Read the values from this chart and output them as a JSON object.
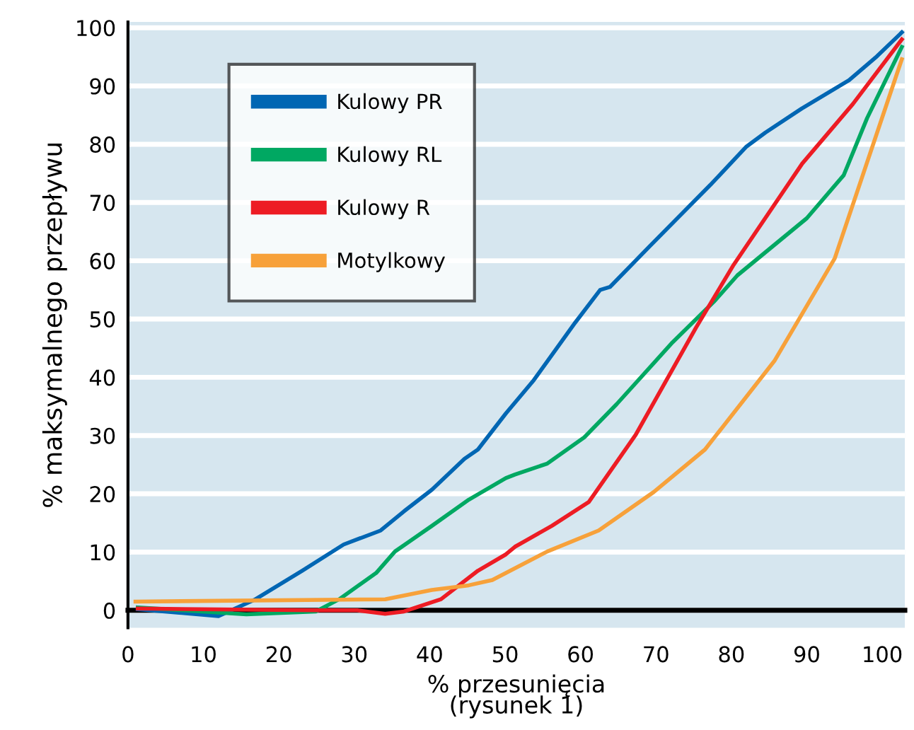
{
  "chart_data": {
    "type": "line",
    "xlabel": "% przesunięcia\n(rysunek 1)",
    "ylabel": "% maksymalnego przepływu",
    "xlim": [
      0,
      103
    ],
    "ylim": [
      -3,
      101
    ],
    "xticks": [
      0,
      10,
      20,
      30,
      40,
      50,
      60,
      70,
      80,
      90,
      100
    ],
    "yticks": [
      0,
      10,
      20,
      30,
      40,
      50,
      60,
      70,
      80,
      90,
      100
    ],
    "grid": "y",
    "legend": "top left",
    "marker": "none",
    "line_style": "solid",
    "series": [
      {
        "name": "Kulowy PR",
        "color": "#0066b3",
        "x": [
          1.3,
          12.0,
          16.9,
          23.1,
          28.6,
          33.5,
          36.6,
          40.3,
          44.6,
          46.4,
          50.1,
          53.8,
          59.3,
          62.6,
          63.9,
          69.1,
          77.2,
          82.0,
          84.5,
          89.3,
          95.6,
          99.3,
          102.6
        ],
        "values": [
          0.2,
          -1.0,
          1.9,
          6.8,
          11.3,
          13.7,
          17.0,
          20.7,
          26.0,
          27.6,
          33.8,
          39.5,
          49.4,
          55.0,
          55.5,
          62.4,
          73.0,
          79.6,
          82.0,
          86.1,
          91.0,
          95.1,
          99.2
        ]
      },
      {
        "name": "Kulowy RL",
        "color": "#00a862",
        "x": [
          1.3,
          15.7,
          24.9,
          28.0,
          32.9,
          35.4,
          40.3,
          45.2,
          50.1,
          51.3,
          55.6,
          60.5,
          64.8,
          72.2,
          77.7,
          80.8,
          90.0,
          94.9,
          98.0,
          102.6
        ],
        "values": [
          0.5,
          -0.7,
          -0.2,
          1.9,
          6.4,
          10.1,
          14.5,
          19.0,
          22.7,
          23.3,
          25.2,
          29.7,
          35.4,
          46.0,
          53.0,
          57.5,
          67.3,
          74.7,
          84.5,
          96.7
        ]
      },
      {
        "name": "Kulowy R",
        "color": "#ed1c24",
        "x": [
          1.3,
          24.9,
          30.4,
          34.1,
          36.6,
          41.5,
          46.4,
          50.1,
          51.3,
          56.2,
          61.1,
          67.3,
          75.3,
          80.2,
          89.4,
          96.1,
          102.6
        ],
        "values": [
          0.3,
          0.0,
          0.0,
          -0.6,
          -0.2,
          1.9,
          6.8,
          9.6,
          10.9,
          14.5,
          18.6,
          30.1,
          48.5,
          59.1,
          76.7,
          86.9,
          98.0
        ]
      },
      {
        "name": "Motylkowy",
        "color": "#f7a13a",
        "x": [
          1.0,
          34.1,
          40.3,
          45.2,
          48.3,
          55.6,
          62.4,
          69.7,
          76.5,
          85.7,
          93.7,
          102.6
        ],
        "values": [
          1.5,
          1.9,
          3.5,
          4.3,
          5.2,
          10.1,
          13.7,
          20.3,
          27.6,
          42.8,
          60.4,
          94.6
        ]
      }
    ]
  }
}
